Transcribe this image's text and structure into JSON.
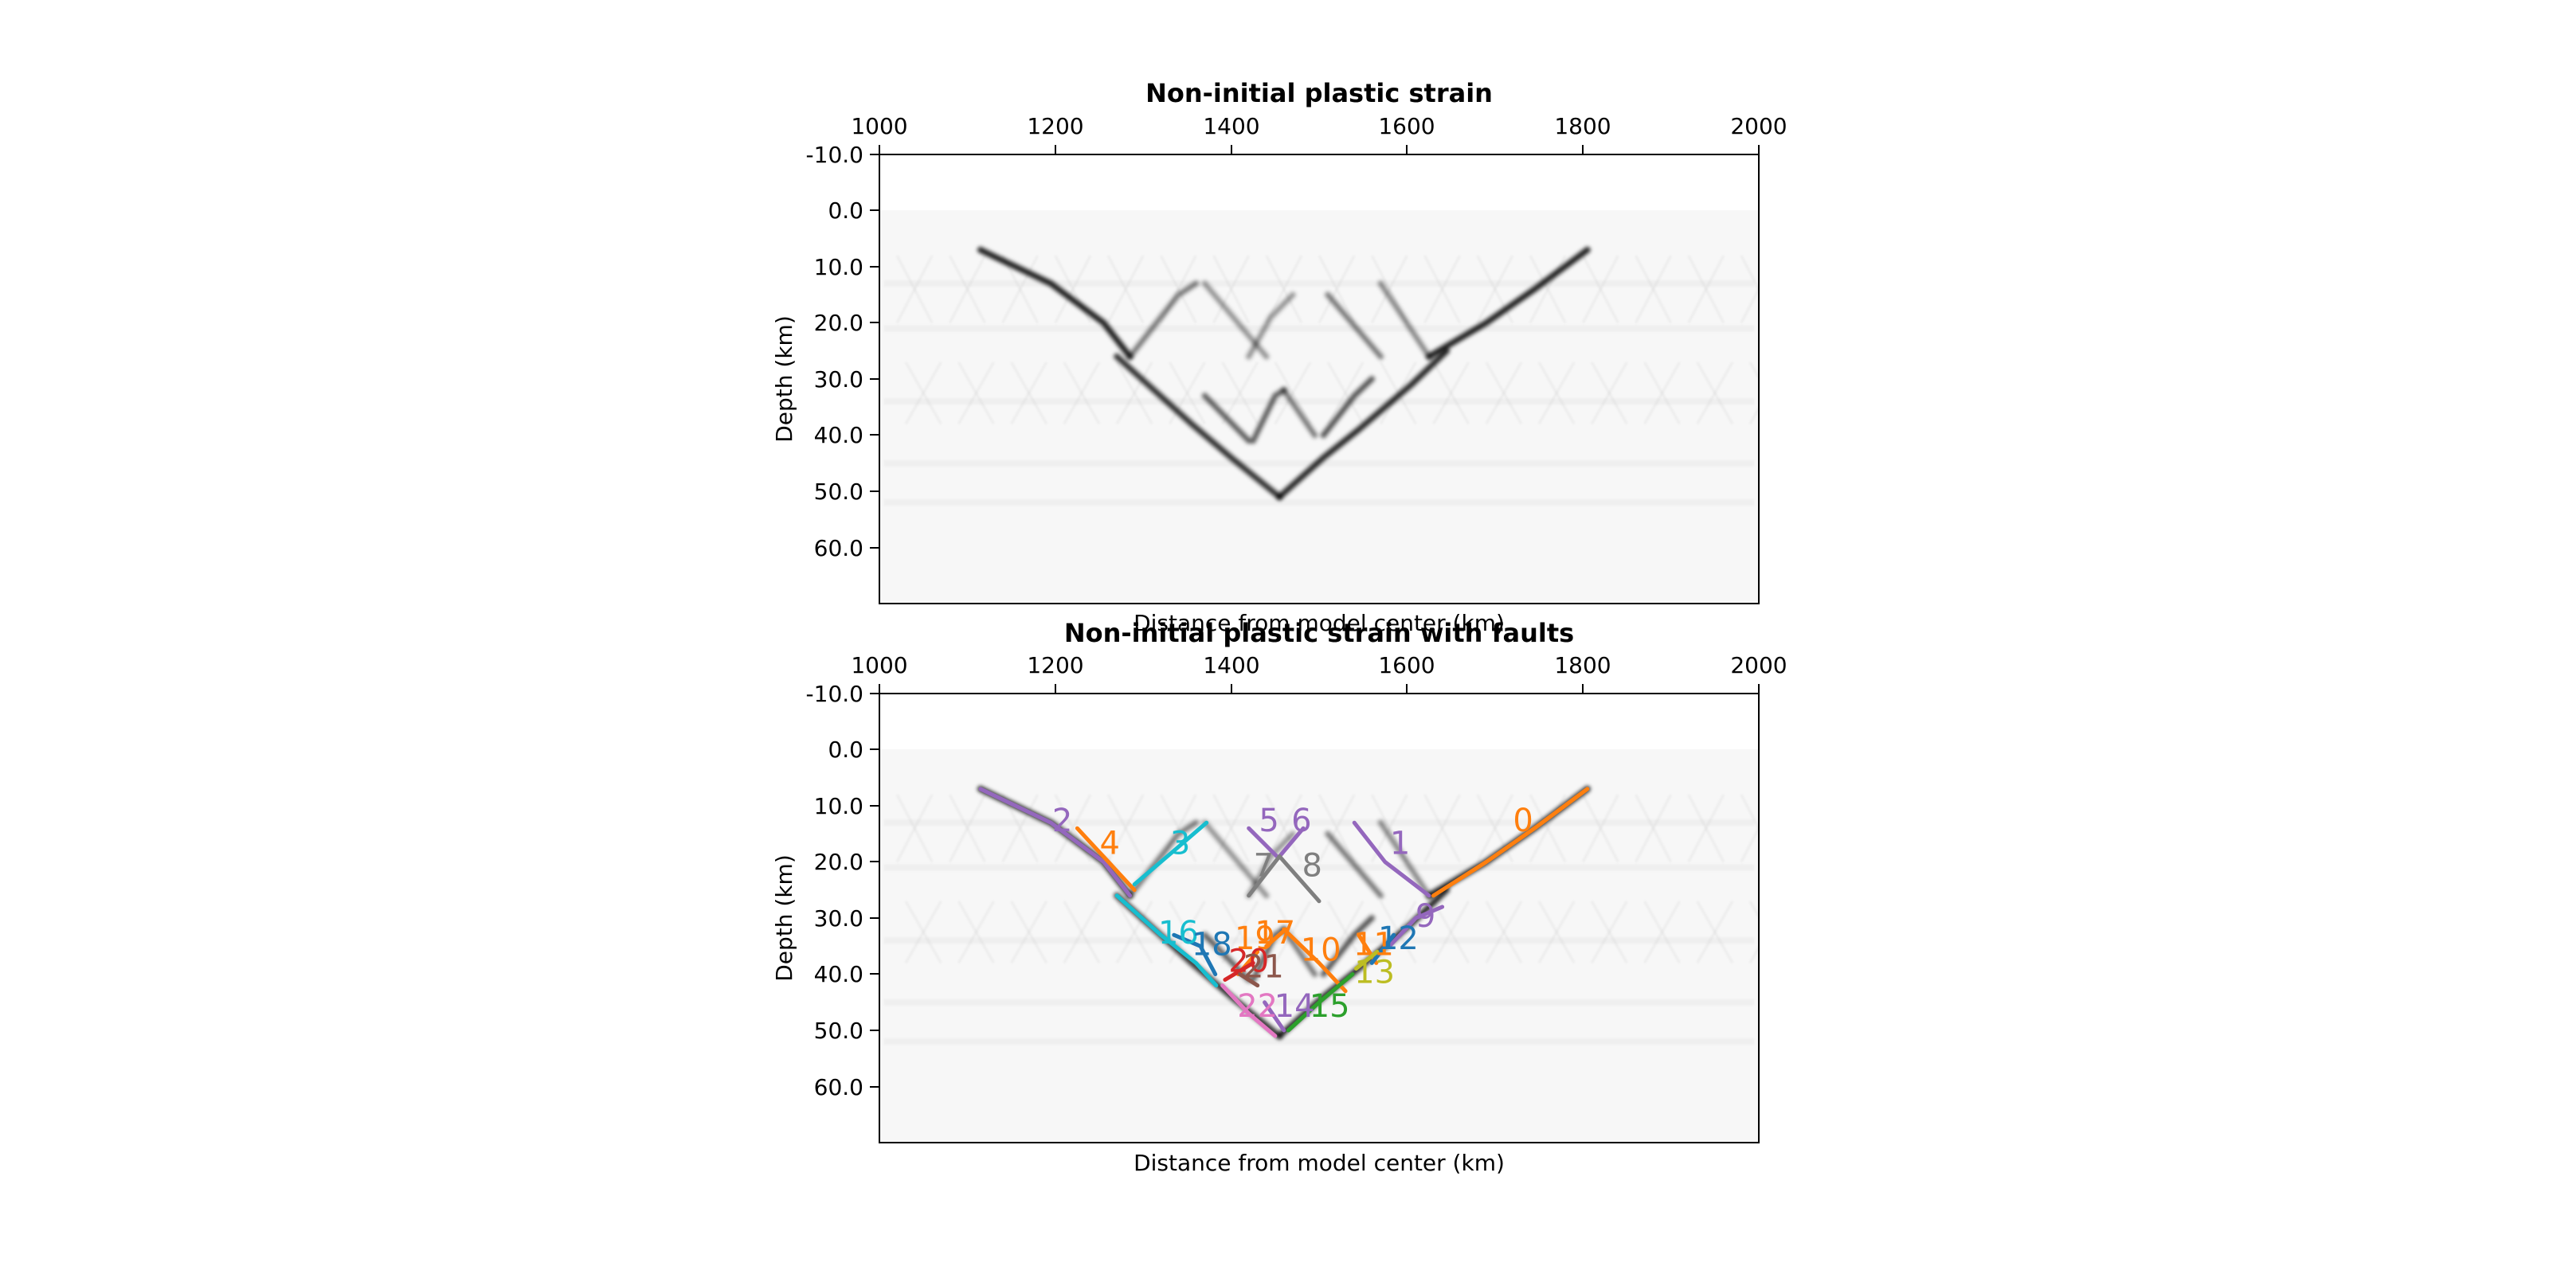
{
  "figure": {
    "panels": [
      {
        "id": "top",
        "title": "Non-initial plastic strain",
        "xlabel": "Distance from model center (km)",
        "ylabel": "Depth (km)",
        "x_ticks": [
          "1000",
          "1200",
          "1400",
          "1600",
          "1800",
          "2000"
        ],
        "y_ticks": [
          "-10.0",
          "0.0",
          "10.0",
          "20.0",
          "30.0",
          "40.0",
          "50.0",
          "60.0"
        ]
      },
      {
        "id": "bottom",
        "title": "Non-initial plastic strain with faults",
        "xlabel": "Distance from model center (km)",
        "ylabel": "Depth (km)",
        "x_ticks": [
          "1000",
          "1200",
          "1400",
          "1600",
          "1800",
          "2000"
        ],
        "y_ticks": [
          "-10.0",
          "0.0",
          "10.0",
          "20.0",
          "30.0",
          "40.0",
          "50.0",
          "60.0"
        ]
      }
    ]
  },
  "chart_data": [
    {
      "type": "heatmap",
      "title": "Non-initial plastic strain",
      "xlabel": "Distance from model center (km)",
      "ylabel": "Depth (km)",
      "xlim": [
        1000,
        2000
      ],
      "ylim": [
        70,
        -10
      ],
      "colormap": "greys",
      "shear_bands": [
        {
          "points": [
            [
              1115,
              7
            ],
            [
              1195,
              13
            ],
            [
              1255,
              20
            ],
            [
              1285,
              26
            ]
          ],
          "strength": 0.85
        },
        {
          "points": [
            [
              1285,
              26
            ],
            [
              1340,
              15
            ],
            [
              1360,
              13
            ]
          ],
          "strength": 0.4
        },
        {
          "points": [
            [
              1370,
              13
            ],
            [
              1440,
              26
            ]
          ],
          "strength": 0.3
        },
        {
          "points": [
            [
              1420,
              26
            ],
            [
              1445,
              19
            ],
            [
              1470,
              15
            ]
          ],
          "strength": 0.3
        },
        {
          "points": [
            [
              1510,
              15
            ],
            [
              1570,
              26
            ]
          ],
          "strength": 0.4
        },
        {
          "points": [
            [
              1570,
              13
            ],
            [
              1625,
              26
            ]
          ],
          "strength": 0.35
        },
        {
          "points": [
            [
              1625,
              26
            ],
            [
              1690,
              20
            ],
            [
              1745,
              14
            ],
            [
              1805,
              7
            ]
          ],
          "strength": 0.85
        },
        {
          "points": [
            [
              1270,
              26
            ],
            [
              1355,
              38
            ],
            [
              1400,
              44
            ],
            [
              1455,
              51
            ]
          ],
          "strength": 0.75
        },
        {
          "points": [
            [
              1370,
              33
            ],
            [
              1420,
              41
            ]
          ],
          "strength": 0.5
        },
        {
          "points": [
            [
              1425,
              41
            ],
            [
              1450,
              33
            ],
            [
              1460,
              32
            ]
          ],
          "strength": 0.5
        },
        {
          "points": [
            [
              1460,
              32
            ],
            [
              1495,
              40
            ]
          ],
          "strength": 0.4
        },
        {
          "points": [
            [
              1505,
              40
            ],
            [
              1540,
              33
            ],
            [
              1560,
              30
            ]
          ],
          "strength": 0.55
        },
        {
          "points": [
            [
              1455,
              51
            ],
            [
              1505,
              44
            ],
            [
              1545,
              39
            ],
            [
              1605,
              31
            ],
            [
              1645,
              25
            ]
          ],
          "strength": 0.8
        }
      ]
    },
    {
      "type": "heatmap",
      "title": "Non-initial plastic strain with faults",
      "xlabel": "Distance from model center (km)",
      "ylabel": "Depth (km)",
      "xlim": [
        1000,
        2000
      ],
      "ylim": [
        70,
        -10
      ],
      "faults": [
        {
          "name": "0",
          "color": "#ff7f0e",
          "points": [
            [
              1630,
              26
            ],
            [
              1690,
              20
            ],
            [
              1745,
              14
            ],
            [
              1805,
              7
            ]
          ],
          "label_at": [
            1732,
            13
          ]
        },
        {
          "name": "1",
          "color": "#9467bd",
          "points": [
            [
              1540,
              13
            ],
            [
              1575,
              20
            ],
            [
              1625,
              26
            ]
          ],
          "label_at": [
            1592,
            17
          ]
        },
        {
          "name": "2",
          "color": "#9467bd",
          "points": [
            [
              1115,
              7
            ],
            [
              1195,
              13
            ],
            [
              1255,
              20
            ],
            [
              1285,
              26
            ]
          ],
          "label_at": [
            1208,
            13
          ]
        },
        {
          "name": "3",
          "color": "#17becf",
          "points": [
            [
              1290,
              24
            ],
            [
              1335,
              18
            ],
            [
              1372,
              13
            ]
          ],
          "label_at": [
            1342,
            17
          ]
        },
        {
          "name": "4",
          "color": "#ff7f0e",
          "points": [
            [
              1225,
              14
            ],
            [
              1290,
              25
            ]
          ],
          "label_at": [
            1262,
            17
          ]
        },
        {
          "name": "5",
          "color": "#9467bd",
          "points": [
            [
              1420,
              14
            ],
            [
              1452,
              19
            ]
          ],
          "label_at": [
            1443,
            13
          ]
        },
        {
          "name": "6",
          "color": "#9467bd",
          "points": [
            [
              1455,
              19
            ],
            [
              1482,
              14
            ]
          ],
          "label_at": [
            1480,
            13
          ]
        },
        {
          "name": "7",
          "color": "#7f7f7f",
          "points": [
            [
              1455,
              19
            ],
            [
              1420,
              26
            ]
          ],
          "label_at": [
            1437,
            21
          ]
        },
        {
          "name": "8",
          "color": "#7f7f7f",
          "points": [
            [
              1455,
              19
            ],
            [
              1500,
              27
            ]
          ],
          "label_at": [
            1492,
            21
          ]
        },
        {
          "name": "9",
          "color": "#9467bd",
          "points": [
            [
              1580,
              35
            ],
            [
              1610,
              30
            ],
            [
              1640,
              28
            ]
          ],
          "label_at": [
            1621,
            30
          ]
        },
        {
          "name": "10",
          "color": "#ff7f0e",
          "points": [
            [
              1460,
              32
            ],
            [
              1500,
              38
            ],
            [
              1530,
              43
            ]
          ],
          "label_at": [
            1502,
            36
          ]
        },
        {
          "name": "11",
          "color": "#ff7f0e",
          "points": [
            [
              1545,
              33
            ],
            [
              1565,
              38
            ]
          ],
          "label_at": [
            1562,
            35
          ]
        },
        {
          "name": "12",
          "color": "#1f77b4",
          "points": [
            [
              1560,
              38
            ],
            [
              1585,
              33
            ]
          ],
          "label_at": [
            1590,
            34
          ]
        },
        {
          "name": "13",
          "color": "#bcbd22",
          "points": [
            [
              1542,
              39
            ],
            [
              1566,
              36
            ]
          ],
          "label_at": [
            1563,
            40
          ]
        },
        {
          "name": "14",
          "color": "#9467bd",
          "points": [
            [
              1438,
              45
            ],
            [
              1460,
              50
            ]
          ],
          "label_at": [
            1472,
            46
          ]
        },
        {
          "name": "15",
          "color": "#2ca02c",
          "points": [
            [
              1465,
              50
            ],
            [
              1500,
              45
            ],
            [
              1538,
              40
            ]
          ],
          "label_at": [
            1512,
            46
          ]
        },
        {
          "name": "16",
          "color": "#17becf",
          "points": [
            [
              1270,
              26
            ],
            [
              1320,
              33
            ],
            [
              1360,
              38
            ],
            [
              1383,
              42
            ]
          ],
          "label_at": [
            1340,
            33
          ]
        },
        {
          "name": "17",
          "color": "#ff7f0e",
          "points": [
            [
              1440,
              35
            ],
            [
              1462,
              32
            ]
          ],
          "label_at": [
            1450,
            33
          ]
        },
        {
          "name": "18",
          "color": "#1f77b4",
          "points": [
            [
              1335,
              33
            ],
            [
              1365,
              35
            ],
            [
              1382,
              40
            ]
          ],
          "label_at": [
            1378,
            35
          ]
        },
        {
          "name": "19",
          "color": "#ff7f0e",
          "points": [
            [
              1408,
              40
            ],
            [
              1430,
              36
            ]
          ],
          "label_at": [
            1427,
            34
          ]
        },
        {
          "name": "20",
          "color": "#d62728",
          "points": [
            [
              1393,
              41
            ],
            [
              1425,
              38
            ]
          ],
          "label_at": [
            1420,
            38
          ]
        },
        {
          "name": "21",
          "color": "#8c564b",
          "points": [
            [
              1410,
              40
            ],
            [
              1430,
              42
            ]
          ],
          "label_at": [
            1437,
            39
          ]
        },
        {
          "name": "22",
          "color": "#e377c2",
          "points": [
            [
              1390,
              42
            ],
            [
              1420,
              47
            ],
            [
              1450,
              51
            ]
          ],
          "label_at": [
            1430,
            46
          ]
        }
      ]
    }
  ]
}
